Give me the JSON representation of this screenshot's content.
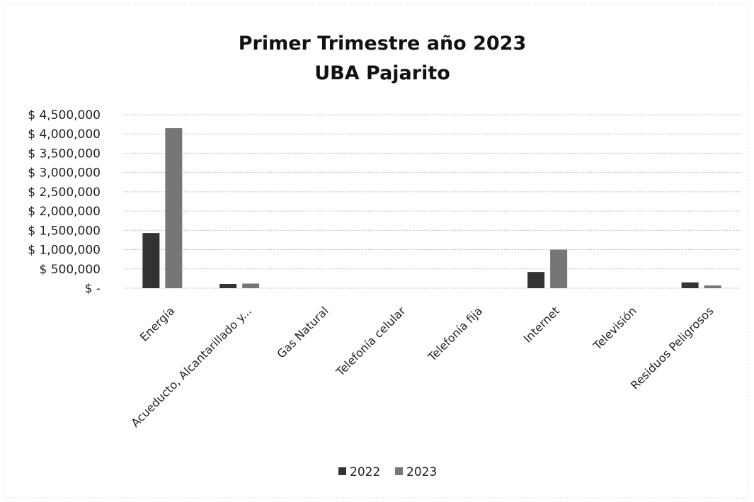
{
  "chart_data": {
    "type": "bar",
    "title": [
      "Primer Trimestre año 2023",
      "UBA Pajarito"
    ],
    "xlabel": "",
    "ylabel": "",
    "ylim": [
      0,
      4500000
    ],
    "yticks": [
      {
        "value": 4500000,
        "label": "$ 4,500,000"
      },
      {
        "value": 4000000,
        "label": "$ 4,000,000"
      },
      {
        "value": 3500000,
        "label": "$ 3,500,000"
      },
      {
        "value": 3000000,
        "label": "$ 3,000,000"
      },
      {
        "value": 2500000,
        "label": "$ 2,500,000"
      },
      {
        "value": 2000000,
        "label": "$ 2,000,000"
      },
      {
        "value": 1500000,
        "label": "$ 1,500,000"
      },
      {
        "value": 1000000,
        "label": "$ 1,000,000"
      },
      {
        "value": 500000,
        "label": "$ 500,000"
      },
      {
        "value": 0,
        "label": "$ -"
      }
    ],
    "categories": [
      "Energía",
      "Acueducto, Alcantarillado y...",
      "Gas Natural",
      "Telefonía celular",
      "Telefonía fija",
      "Internet",
      "Televisión",
      "Residuos Peligrosos"
    ],
    "series": [
      {
        "name": "2022",
        "color": "#333333",
        "values": [
          1430000,
          110000,
          0,
          0,
          0,
          420000,
          0,
          150000
        ]
      },
      {
        "name": "2023",
        "color": "#767676",
        "values": [
          4150000,
          120000,
          0,
          0,
          0,
          1000000,
          0,
          70000
        ]
      }
    ],
    "grid": true,
    "legend_position": "bottom"
  }
}
